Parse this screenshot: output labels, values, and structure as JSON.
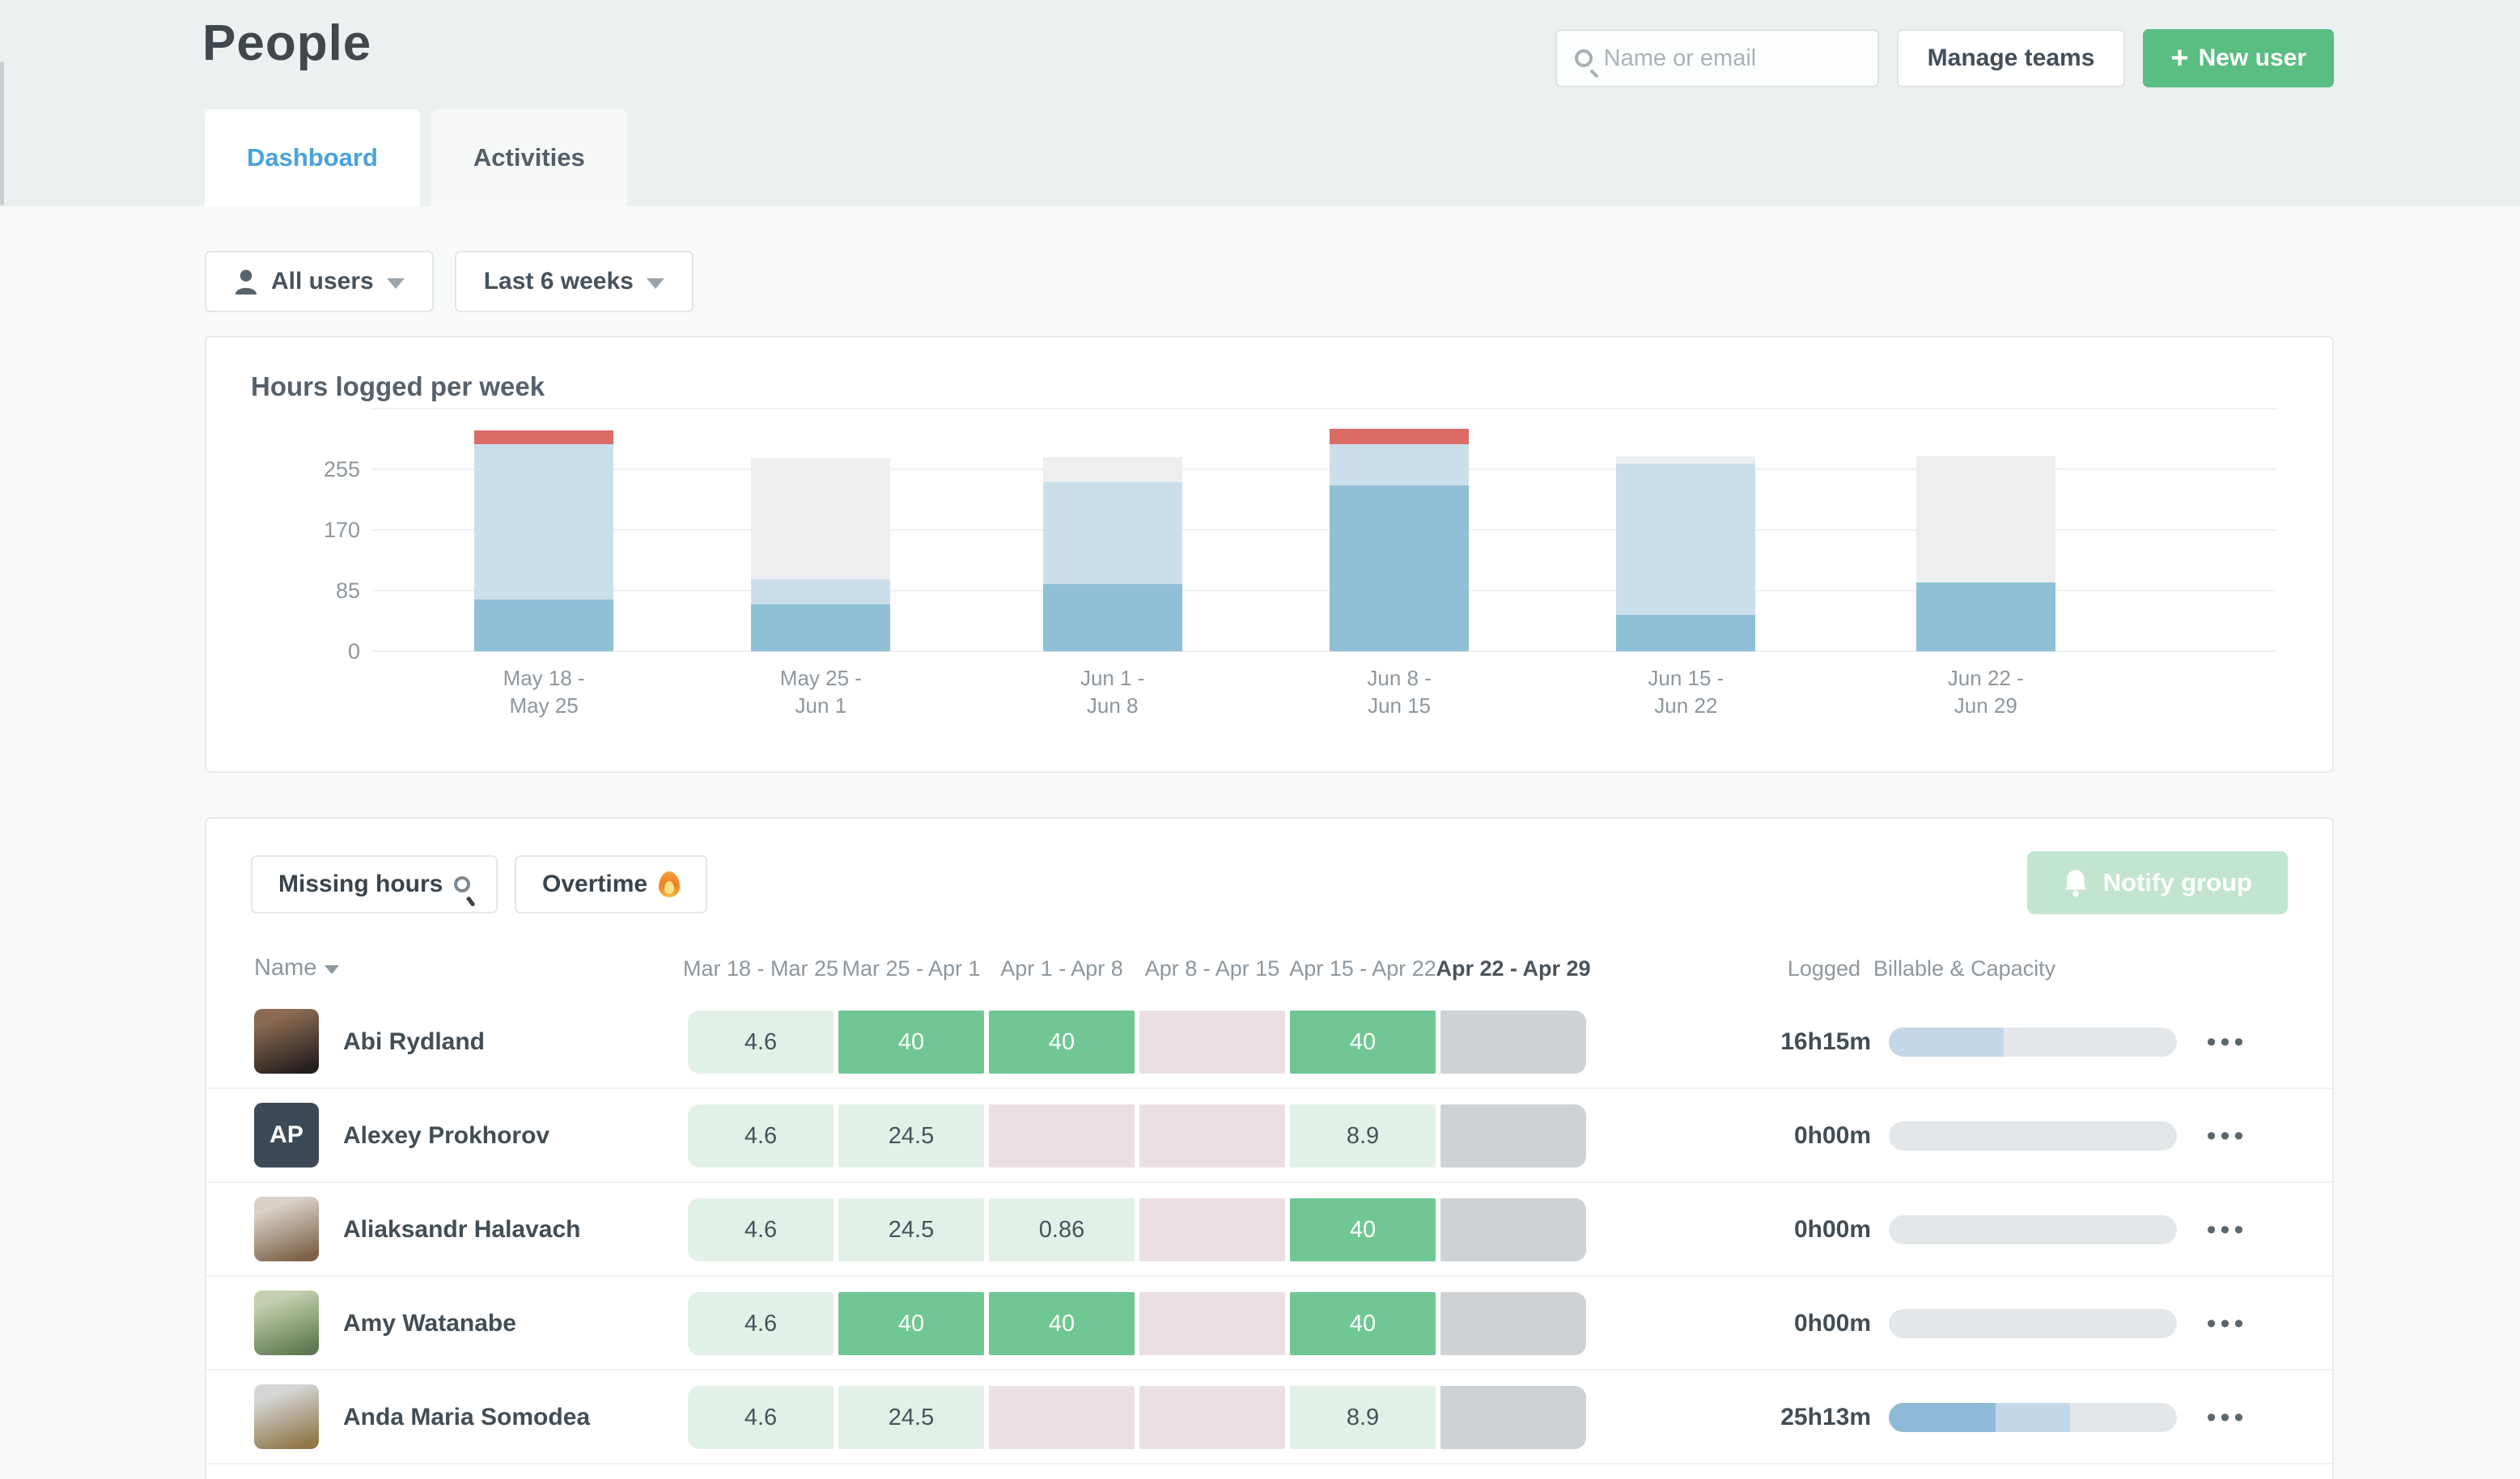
{
  "header": {
    "title": "People",
    "search_placeholder": "Name or email",
    "manage_teams_label": "Manage teams",
    "new_user_plus": "+",
    "new_user_label": "New user"
  },
  "tabs": [
    {
      "label": "Dashboard",
      "active": true
    },
    {
      "label": "Activities",
      "active": false
    }
  ],
  "filters": {
    "users_label": "All users",
    "range_label": "Last 6 weeks"
  },
  "chart_data": {
    "type": "bar",
    "stacked": true,
    "title": "Hours logged per week",
    "categories": [
      "May 18 - May 25",
      "May 25 - Jun 1",
      "Jun 1 - Jun 8",
      "Jun 8 - Jun 15",
      "Jun 15 - Jun 22",
      "Jun 22 - Jun 29"
    ],
    "yticks": [
      0,
      85,
      170,
      255
    ],
    "ylim": [
      0,
      340
    ],
    "grid": true,
    "legend": "none",
    "series": [
      {
        "name": "hours-logged",
        "color": "#8fc0d6",
        "values": [
          73,
          66,
          94,
          232,
          51,
          96
        ]
      },
      {
        "name": "hours-logged-light",
        "color": "#cbdfeb",
        "values": [
          217,
          35,
          143,
          58,
          212,
          0
        ]
      },
      {
        "name": "capacity-remaining",
        "color": "#eceef0",
        "values": [
          0,
          170,
          35,
          0,
          10,
          177
        ]
      },
      {
        "name": "overtime",
        "color": "#dd6b65",
        "values": [
          19,
          0,
          0,
          22,
          0,
          0
        ]
      }
    ]
  },
  "toolbar": {
    "missing_hours_label": "Missing hours",
    "overtime_label": "Overtime",
    "notify_group_label": "Notify group"
  },
  "table": {
    "name_header": "Name",
    "week_headers": [
      {
        "label": "Mar 18 - Mar 25",
        "bold": false
      },
      {
        "label": "Mar 25 - Apr 1",
        "bold": false
      },
      {
        "label": "Apr 1 - Apr 8",
        "bold": false
      },
      {
        "label": "Apr 8 - Apr 15",
        "bold": false
      },
      {
        "label": "Apr 15 - Apr 22",
        "bold": false
      },
      {
        "label": "Apr 22 - Apr 29",
        "bold": true
      }
    ],
    "logged_header": "Logged",
    "billable_header": "Billable & Capacity",
    "menu_glyph": "•••",
    "rows": [
      {
        "name": "Abi Rydland",
        "avatar": {
          "kind": "photo",
          "colors": [
            "#8a6a52",
            "#241f1e"
          ],
          "initials": ""
        },
        "cells": [
          {
            "value": "4.6",
            "style": "mint"
          },
          {
            "value": "40",
            "style": "green"
          },
          {
            "value": "40",
            "style": "green"
          },
          {
            "value": "",
            "style": "pink"
          },
          {
            "value": "40",
            "style": "green"
          },
          {
            "value": "",
            "style": "gray"
          }
        ],
        "logged": "16h15m",
        "billable_segments": [
          {
            "color": "#c2d8e9",
            "percent": 40
          }
        ]
      },
      {
        "name": "Alexey Prokhorov",
        "avatar": {
          "kind": "initials",
          "colors": [
            "#3d4a55",
            "#3d4a55"
          ],
          "initials": "AP"
        },
        "cells": [
          {
            "value": "4.6",
            "style": "mint"
          },
          {
            "value": "24.5",
            "style": "mint"
          },
          {
            "value": "",
            "style": "pink"
          },
          {
            "value": "",
            "style": "pink"
          },
          {
            "value": "8.9",
            "style": "mint"
          },
          {
            "value": "",
            "style": "gray"
          }
        ],
        "logged": "0h00m",
        "billable_segments": []
      },
      {
        "name": "Aliaksandr Halavach",
        "avatar": {
          "kind": "photo",
          "colors": [
            "#d9d2c8",
            "#7d6248"
          ],
          "initials": ""
        },
        "cells": [
          {
            "value": "4.6",
            "style": "mint"
          },
          {
            "value": "24.5",
            "style": "mint"
          },
          {
            "value": "0.86",
            "style": "mint"
          },
          {
            "value": "",
            "style": "pink"
          },
          {
            "value": "40",
            "style": "green"
          },
          {
            "value": "",
            "style": "gray"
          }
        ],
        "logged": "0h00m",
        "billable_segments": []
      },
      {
        "name": "Amy Watanabe",
        "avatar": {
          "kind": "photo",
          "colors": [
            "#c3cfae",
            "#5f7a52"
          ],
          "initials": ""
        },
        "cells": [
          {
            "value": "4.6",
            "style": "mint"
          },
          {
            "value": "40",
            "style": "green"
          },
          {
            "value": "40",
            "style": "green"
          },
          {
            "value": "",
            "style": "pink"
          },
          {
            "value": "40",
            "style": "green"
          },
          {
            "value": "",
            "style": "gray"
          }
        ],
        "logged": "0h00m",
        "billable_segments": []
      },
      {
        "name": "Anda Maria Somodea",
        "avatar": {
          "kind": "photo",
          "colors": [
            "#d4d6d6",
            "#8f7747"
          ],
          "initials": ""
        },
        "cells": [
          {
            "value": "4.6",
            "style": "mint"
          },
          {
            "value": "24.5",
            "style": "mint"
          },
          {
            "value": "",
            "style": "pink"
          },
          {
            "value": "",
            "style": "pink"
          },
          {
            "value": "8.9",
            "style": "mint"
          },
          {
            "value": "",
            "style": "gray"
          }
        ],
        "logged": "25h13m",
        "billable_segments": [
          {
            "color": "#8fbad7",
            "percent": 37
          },
          {
            "color": "#c2d8e9",
            "percent": 26
          }
        ]
      }
    ]
  }
}
